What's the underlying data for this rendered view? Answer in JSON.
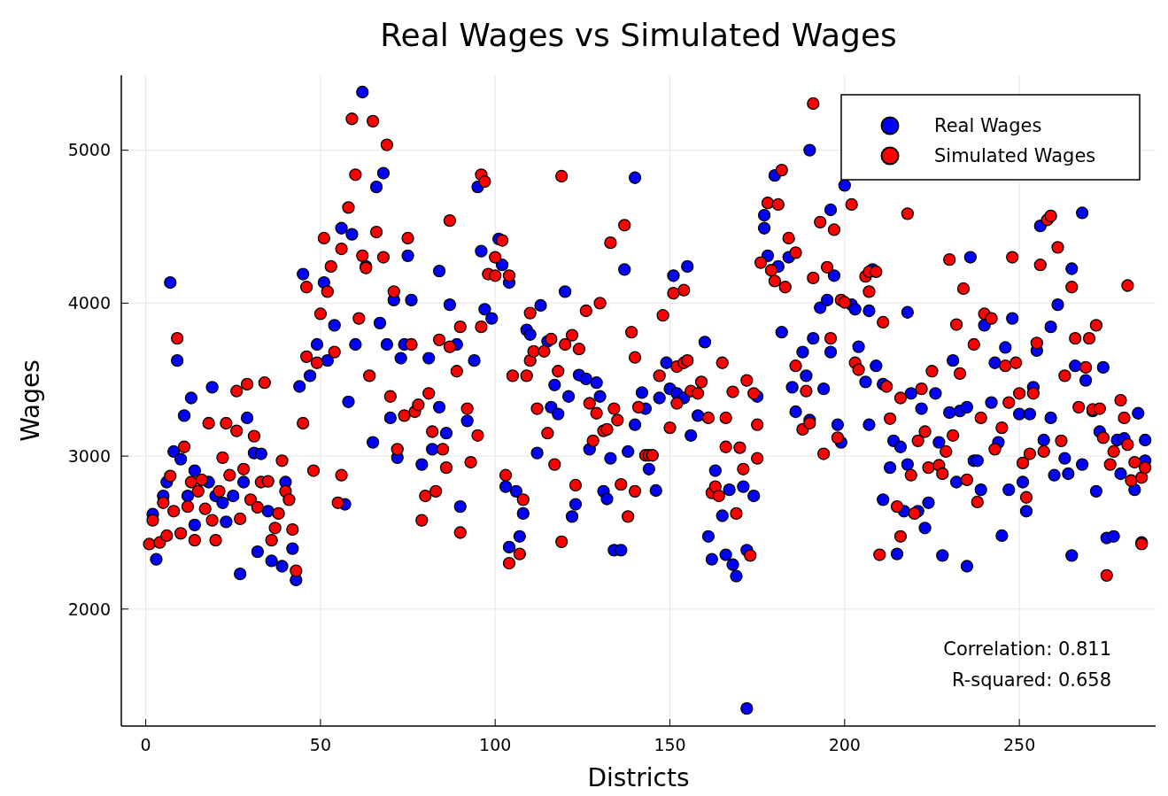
{
  "chart_data": {
    "type": "scatter",
    "title": "Real Wages vs Simulated Wages",
    "xlabel": "Districts",
    "ylabel": "Wages",
    "xlim": [
      -7,
      289
    ],
    "ylim": [
      1235,
      5490
    ],
    "xticks": [
      0,
      50,
      100,
      150,
      200,
      250
    ],
    "yticks": [
      2000,
      3000,
      4000,
      5000
    ],
    "grid": true,
    "legend": "top right",
    "marker": "circle",
    "annotations": [
      "Correlation: 0.811",
      "R-squared: 0.658"
    ],
    "series": [
      {
        "name": "Real Wages",
        "color": "#0000ff",
        "x": [
          2,
          3,
          5,
          6,
          7,
          9,
          8,
          10,
          11,
          13,
          12,
          14,
          14,
          19,
          18,
          20,
          22,
          23,
          25,
          27,
          28,
          29,
          31,
          32,
          33,
          35,
          36,
          39,
          40,
          42,
          43,
          44,
          45,
          47,
          49,
          51,
          52,
          54,
          56,
          57,
          58,
          59,
          60,
          62,
          63,
          65,
          66,
          67,
          68,
          69,
          70,
          71,
          72,
          73,
          74,
          75,
          76,
          79,
          81,
          82,
          84,
          84,
          86,
          87,
          89,
          90,
          92,
          94,
          95,
          96,
          97,
          99,
          101,
          102,
          103,
          104,
          104,
          106,
          107,
          108,
          109,
          110,
          112,
          113,
          115,
          116,
          117,
          118,
          120,
          121,
          122,
          123,
          124,
          126,
          127,
          129,
          130,
          131,
          132,
          133,
          134,
          136,
          137,
          138,
          140,
          140,
          142,
          143,
          144,
          146,
          147,
          149,
          150,
          151,
          152,
          154,
          155,
          156,
          158,
          160,
          161,
          162,
          163,
          165,
          166,
          167,
          168,
          169,
          171,
          172,
          172,
          174,
          175,
          177,
          177,
          178,
          180,
          181,
          182,
          184,
          185,
          186,
          188,
          189,
          190,
          190,
          191,
          193,
          194,
          195,
          196,
          196,
          197,
          198,
          199,
          200,
          202,
          203,
          204,
          206,
          207,
          207,
          208,
          209,
          211,
          211,
          213,
          214,
          215,
          216,
          217,
          218,
          218,
          219,
          221,
          222,
          223,
          224,
          226,
          227,
          228,
          230,
          231,
          232,
          233,
          235,
          236,
          235,
          237,
          238,
          239,
          240,
          242,
          243,
          244,
          245,
          246,
          247,
          248,
          250,
          251,
          252,
          253,
          254,
          255,
          256,
          257,
          259,
          259,
          260,
          261,
          263,
          264,
          265,
          265,
          266,
          268,
          268,
          269,
          271,
          272,
          273,
          274,
          275,
          277,
          278,
          279,
          280,
          283,
          284,
          285,
          286,
          286
        ],
        "values": [
          2620,
          2325,
          2740,
          2830,
          4135,
          3625,
          3030,
          2980,
          3265,
          3380,
          2740,
          2905,
          2550,
          3450,
          2830,
          2740,
          2695,
          2570,
          2740,
          2230,
          2830,
          3250,
          3020,
          2375,
          3015,
          2640,
          2315,
          2280,
          2830,
          2395,
          2190,
          3455,
          4190,
          3525,
          3730,
          4135,
          3625,
          3855,
          4490,
          2685,
          3355,
          4450,
          3730,
          5380,
          4240,
          3090,
          4760,
          3870,
          4850,
          3730,
          3250,
          4020,
          2990,
          3640,
          3730,
          4310,
          4020,
          2945,
          3640,
          3045,
          4210,
          3320,
          3150,
          3990,
          3730,
          2670,
          3230,
          3625,
          4760,
          4340,
          3960,
          3900,
          4420,
          4250,
          2800,
          2405,
          4135,
          2770,
          2475,
          2625,
          3825,
          3795,
          3020,
          3985,
          3750,
          3320,
          3465,
          3275,
          4075,
          3390,
          2605,
          2685,
          3530,
          3505,
          3045,
          3480,
          3390,
          2770,
          2720,
          2985,
          2385,
          2385,
          4220,
          3030,
          4820,
          3205,
          3415,
          3310,
          2915,
          2775,
          3380,
          3610,
          3440,
          4180,
          3410,
          3380,
          4240,
          3135,
          3265,
          3745,
          2475,
          2325,
          2905,
          2610,
          2355,
          2780,
          2290,
          2215,
          2800,
          2385,
          1350,
          2740,
          3390,
          4575,
          4490,
          4310,
          4835,
          4240,
          3810,
          4300,
          3450,
          3290,
          3680,
          3525,
          3235,
          5000,
          3770,
          3970,
          3440,
          4020,
          3680,
          4610,
          4180,
          3205,
          3090,
          4770,
          3990,
          3960,
          3715,
          3485,
          3950,
          3205,
          4220,
          3590,
          2715,
          3470,
          2925,
          3100,
          2360,
          3060,
          2640,
          2945,
          3940,
          3410,
          2640,
          3310,
          2530,
          2695,
          3410,
          3090,
          2350,
          3285,
          3625,
          2830,
          3295,
          3320,
          4300,
          2280,
          2970,
          2970,
          2780,
          3855,
          3350,
          3610,
          3090,
          2480,
          3710,
          2780,
          3900,
          3275,
          2830,
          2640,
          3275,
          3450,
          3690,
          4505,
          3105,
          3845,
          3250,
          2875,
          3990,
          2985,
          2885,
          2350,
          4225,
          3590,
          4590,
          2945,
          3495,
          3295,
          2770,
          3160,
          3580,
          2465,
          2475,
          3105,
          2885,
          3115,
          2780,
          3280,
          2435,
          3105,
          2970
        ]
      },
      {
        "name": "Simulated Wages",
        "color": "#ff0000",
        "x": [
          1,
          2,
          4,
          5,
          6,
          7,
          8,
          9,
          10,
          11,
          12,
          13,
          14,
          15,
          16,
          17,
          18,
          19,
          20,
          21,
          22,
          23,
          24,
          26,
          26,
          27,
          28,
          29,
          30,
          31,
          32,
          33,
          34,
          35,
          36,
          37,
          38,
          39,
          40,
          41,
          42,
          43,
          45,
          46,
          46,
          48,
          49,
          50,
          51,
          52,
          53,
          54,
          55,
          56,
          56,
          58,
          59,
          60,
          61,
          62,
          63,
          64,
          65,
          66,
          68,
          69,
          70,
          71,
          72,
          74,
          75,
          76,
          77,
          78,
          79,
          80,
          81,
          82,
          83,
          84,
          85,
          86,
          87,
          87,
          89,
          90,
          90,
          92,
          93,
          95,
          96,
          96,
          97,
          98,
          100,
          100,
          102,
          103,
          104,
          104,
          105,
          107,
          108,
          109,
          110,
          110,
          111,
          112,
          114,
          115,
          116,
          117,
          118,
          119,
          119,
          120,
          122,
          123,
          124,
          126,
          127,
          128,
          129,
          130,
          131,
          132,
          133,
          134,
          135,
          136,
          137,
          138,
          139,
          140,
          140,
          141,
          143,
          144,
          145,
          147,
          148,
          150,
          151,
          152,
          152,
          154,
          154,
          155,
          156,
          158,
          159,
          161,
          162,
          163,
          164,
          165,
          166,
          166,
          168,
          169,
          170,
          171,
          172,
          173,
          174,
          175,
          175,
          176,
          178,
          179,
          180,
          181,
          182,
          183,
          184,
          186,
          186,
          188,
          189,
          190,
          191,
          191,
          193,
          194,
          195,
          196,
          197,
          198,
          199,
          200,
          202,
          203,
          204,
          206,
          207,
          207,
          209,
          210,
          211,
          212,
          213,
          215,
          216,
          216,
          218,
          219,
          220,
          221,
          222,
          223,
          224,
          225,
          227,
          228,
          229,
          230,
          231,
          232,
          233,
          234,
          235,
          237,
          238,
          239,
          240,
          242,
          243,
          245,
          246,
          247,
          248,
          249,
          250,
          251,
          252,
          253,
          254,
          255,
          256,
          257,
          258,
          259,
          261,
          262,
          263,
          265,
          266,
          267,
          269,
          270,
          271,
          272,
          273,
          274,
          275,
          276,
          277,
          279,
          280,
          281,
          281,
          282,
          283,
          285,
          285,
          286
        ],
        "values": [
          2425,
          2580,
          2435,
          2695,
          2480,
          2870,
          2640,
          3770,
          2495,
          3060,
          2670,
          2830,
          2450,
          2770,
          2845,
          2655,
          3215,
          2580,
          2450,
          2770,
          2990,
          3215,
          2875,
          3165,
          3425,
          2590,
          2915,
          3470,
          2715,
          3130,
          2665,
          2830,
          3480,
          2835,
          2450,
          2530,
          2625,
          2970,
          2770,
          2715,
          2520,
          2250,
          3215,
          4105,
          3650,
          2905,
          3610,
          3930,
          4425,
          4075,
          4240,
          3680,
          2695,
          4355,
          2875,
          4625,
          5205,
          4840,
          3900,
          4310,
          4230,
          3525,
          5190,
          4465,
          4300,
          5035,
          3390,
          4075,
          3045,
          3265,
          4425,
          3730,
          3290,
          3335,
          2580,
          2740,
          3410,
          3160,
          2770,
          3760,
          3045,
          2925,
          3715,
          4540,
          3555,
          3845,
          2500,
          3310,
          2960,
          3135,
          3845,
          4840,
          4795,
          4190,
          4300,
          4180,
          4410,
          2875,
          2300,
          4180,
          3525,
          2360,
          2715,
          3525,
          3935,
          3625,
          3685,
          3310,
          3685,
          3150,
          3765,
          2945,
          3555,
          2440,
          4830,
          3730,
          3790,
          2810,
          3700,
          3950,
          3345,
          3100,
          3280,
          4000,
          3165,
          3175,
          4395,
          3310,
          3235,
          2815,
          4510,
          2605,
          3810,
          3645,
          2770,
          3320,
          3005,
          3005,
          3005,
          3525,
          3920,
          3185,
          4065,
          3345,
          3585,
          4085,
          3610,
          3625,
          3425,
          3410,
          3485,
          3250,
          2760,
          2800,
          2740,
          3610,
          3060,
          3250,
          3420,
          2625,
          3055,
          2915,
          3495,
          2350,
          3410,
          2985,
          3205,
          4265,
          4655,
          4215,
          4145,
          4645,
          4870,
          4105,
          4425,
          4330,
          3590,
          3175,
          3425,
          3215,
          5305,
          4165,
          4530,
          3015,
          4235,
          3770,
          4480,
          3120,
          4020,
          4005,
          4645,
          3610,
          3565,
          4175,
          4205,
          4075,
          4205,
          2355,
          3875,
          3455,
          3245,
          2670,
          3380,
          2475,
          4585,
          2875,
          2625,
          3100,
          3440,
          3160,
          2925,
          3555,
          2940,
          2885,
          3030,
          4285,
          3135,
          3860,
          3540,
          4095,
          2845,
          3730,
          2700,
          3250,
          3930,
          3900,
          3045,
          3185,
          3590,
          3350,
          4300,
          3610,
          3410,
          2955,
          2730,
          3015,
          3410,
          3740,
          4250,
          3030,
          4545,
          4570,
          4365,
          3100,
          3525,
          4105,
          3770,
          3320,
          3580,
          3770,
          3305,
          3855,
          3310,
          3120,
          2220,
          2945,
          3030,
          3365,
          3250,
          3075,
          4115,
          2840,
          2960,
          2425,
          2860,
          2925
        ]
      }
    ]
  }
}
